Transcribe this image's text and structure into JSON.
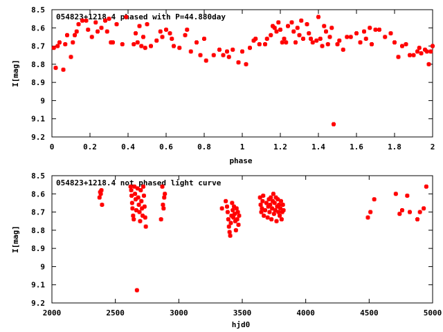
{
  "chart_data": [
    {
      "type": "scatter",
      "title": "054823+1218.4 phased with P=44.880day",
      "xlabel": "phase",
      "ylabel": "I[mag]",
      "xlim": [
        0,
        2
      ],
      "ylim": [
        8.5,
        9.2
      ],
      "y_inverted": true,
      "grid": false,
      "marker_color": "#ff0000",
      "xticks": [
        0,
        0.2,
        0.4,
        0.6,
        0.8,
        1,
        1.2,
        1.4,
        1.6,
        1.8,
        2
      ],
      "xtick_labels": [
        "0",
        "0.2",
        "0.4",
        "0.6",
        "0.8",
        "1",
        "1.2",
        "1.4",
        "1.6",
        "1.8",
        "2"
      ],
      "yticks": [
        8.5,
        8.6,
        8.7,
        8.8,
        8.9,
        9,
        9.1,
        9.2
      ],
      "ytick_labels": [
        "8.5",
        "8.6",
        "8.7",
        "8.8",
        "8.9",
        "9",
        "9.1",
        "9.2"
      ],
      "points": [
        [
          0.01,
          8.71
        ],
        [
          0.02,
          8.82
        ],
        [
          0.03,
          8.7
        ],
        [
          0.04,
          8.68
        ],
        [
          0.06,
          8.83
        ],
        [
          0.07,
          8.69
        ],
        [
          0.08,
          8.64
        ],
        [
          0.1,
          8.76
        ],
        [
          0.11,
          8.68
        ],
        [
          0.12,
          8.64
        ],
        [
          0.13,
          8.62
        ],
        [
          0.14,
          8.58
        ],
        [
          0.16,
          8.56
        ],
        [
          0.18,
          8.56
        ],
        [
          0.19,
          8.61
        ],
        [
          0.21,
          8.65
        ],
        [
          0.23,
          8.57
        ],
        [
          0.24,
          8.62
        ],
        [
          0.26,
          8.6
        ],
        [
          0.28,
          8.56
        ],
        [
          0.29,
          8.62
        ],
        [
          0.3,
          8.55
        ],
        [
          0.31,
          8.68
        ],
        [
          0.32,
          8.68
        ],
        [
          0.34,
          8.58
        ],
        [
          0.37,
          8.69
        ],
        [
          0.39,
          8.54
        ],
        [
          0.43,
          8.69
        ],
        [
          0.44,
          8.63
        ],
        [
          0.45,
          8.68
        ],
        [
          0.46,
          8.59
        ],
        [
          0.47,
          8.7
        ],
        [
          0.48,
          8.65
        ],
        [
          0.49,
          8.71
        ],
        [
          0.5,
          8.58
        ],
        [
          0.52,
          8.7
        ],
        [
          0.55,
          8.67
        ],
        [
          0.57,
          8.62
        ],
        [
          0.58,
          8.65
        ],
        [
          0.6,
          8.61
        ],
        [
          0.62,
          8.63
        ],
        [
          0.63,
          8.66
        ],
        [
          0.64,
          8.7
        ],
        [
          0.67,
          8.71
        ],
        [
          0.7,
          8.64
        ],
        [
          0.71,
          8.61
        ],
        [
          0.73,
          8.73
        ],
        [
          0.76,
          8.68
        ],
        [
          0.78,
          8.75
        ],
        [
          0.8,
          8.66
        ],
        [
          0.81,
          8.78
        ],
        [
          0.85,
          8.75
        ],
        [
          0.88,
          8.72
        ],
        [
          0.9,
          8.75
        ],
        [
          0.92,
          8.73
        ],
        [
          0.93,
          8.76
        ],
        [
          0.95,
          8.72
        ],
        [
          0.98,
          8.79
        ],
        [
          1.0,
          8.73
        ],
        [
          1.02,
          8.8
        ],
        [
          1.04,
          8.71
        ],
        [
          1.06,
          8.67
        ],
        [
          1.07,
          8.66
        ],
        [
          1.09,
          8.69
        ],
        [
          1.12,
          8.69
        ],
        [
          1.13,
          8.66
        ],
        [
          1.15,
          8.64
        ],
        [
          1.16,
          8.59
        ],
        [
          1.17,
          8.6
        ],
        [
          1.18,
          8.62
        ],
        [
          1.19,
          8.57
        ],
        [
          1.2,
          8.61
        ],
        [
          1.21,
          8.68
        ],
        [
          1.22,
          8.66
        ],
        [
          1.23,
          8.68
        ],
        [
          1.24,
          8.59
        ],
        [
          1.26,
          8.57
        ],
        [
          1.27,
          8.62
        ],
        [
          1.28,
          8.68
        ],
        [
          1.29,
          8.6
        ],
        [
          1.3,
          8.64
        ],
        [
          1.31,
          8.56
        ],
        [
          1.32,
          8.66
        ],
        [
          1.34,
          8.58
        ],
        [
          1.35,
          8.63
        ],
        [
          1.36,
          8.66
        ],
        [
          1.37,
          8.68
        ],
        [
          1.39,
          8.67
        ],
        [
          1.4,
          8.54
        ],
        [
          1.41,
          8.66
        ],
        [
          1.42,
          8.7
        ],
        [
          1.43,
          8.59
        ],
        [
          1.44,
          8.62
        ],
        [
          1.45,
          8.69
        ],
        [
          1.46,
          8.65
        ],
        [
          1.47,
          8.6
        ],
        [
          1.48,
          9.13
        ],
        [
          1.5,
          8.69
        ],
        [
          1.51,
          8.67
        ],
        [
          1.53,
          8.72
        ],
        [
          1.55,
          8.65
        ],
        [
          1.57,
          8.65
        ],
        [
          1.6,
          8.63
        ],
        [
          1.62,
          8.68
        ],
        [
          1.64,
          8.62
        ],
        [
          1.65,
          8.66
        ],
        [
          1.67,
          8.6
        ],
        [
          1.68,
          8.69
        ],
        [
          1.7,
          8.61
        ],
        [
          1.72,
          8.61
        ],
        [
          1.75,
          8.65
        ],
        [
          1.78,
          8.63
        ],
        [
          1.8,
          8.68
        ],
        [
          1.82,
          8.76
        ],
        [
          1.84,
          8.7
        ],
        [
          1.86,
          8.69
        ],
        [
          1.88,
          8.75
        ],
        [
          1.9,
          8.75
        ],
        [
          1.92,
          8.73
        ],
        [
          1.93,
          8.71
        ],
        [
          1.94,
          8.74
        ],
        [
          1.96,
          8.72
        ],
        [
          1.97,
          8.73
        ],
        [
          1.98,
          8.8
        ],
        [
          1.99,
          8.73
        ],
        [
          2.0,
          8.7
        ]
      ]
    },
    {
      "type": "scatter",
      "title": "054823+1218.4 not phased light curve",
      "xlabel": "hjd0",
      "ylabel": "I[mag]",
      "xlim": [
        2000,
        5000
      ],
      "ylim": [
        8.5,
        9.2
      ],
      "y_inverted": true,
      "grid": false,
      "marker_color": "#ff0000",
      "xticks": [
        2000,
        2500,
        3000,
        3500,
        4000,
        4500,
        5000
      ],
      "xtick_labels": [
        "2000",
        "2500",
        "3000",
        "3500",
        "4000",
        "4500",
        "5000"
      ],
      "yticks": [
        8.5,
        8.6,
        8.7,
        8.8,
        8.9,
        9,
        9.1,
        9.2
      ],
      "ytick_labels": [
        "8.5",
        "8.6",
        "8.7",
        "8.8",
        "8.9",
        "9",
        "9.1",
        "9.2"
      ],
      "points": [
        [
          2375,
          8.62
        ],
        [
          2380,
          8.59
        ],
        [
          2385,
          8.6
        ],
        [
          2390,
          8.58
        ],
        [
          2395,
          8.66
        ],
        [
          2620,
          8.56
        ],
        [
          2625,
          8.58
        ],
        [
          2628,
          8.61
        ],
        [
          2632,
          8.65
        ],
        [
          2635,
          8.68
        ],
        [
          2640,
          8.72
        ],
        [
          2645,
          8.74
        ],
        [
          2650,
          8.56
        ],
        [
          2655,
          8.6
        ],
        [
          2660,
          8.63
        ],
        [
          2665,
          8.69
        ],
        [
          2670,
          9.13
        ],
        [
          2675,
          8.57
        ],
        [
          2680,
          8.62
        ],
        [
          2685,
          8.66
        ],
        [
          2690,
          8.7
        ],
        [
          2695,
          8.75
        ],
        [
          2700,
          8.58
        ],
        [
          2705,
          8.64
        ],
        [
          2710,
          8.68
        ],
        [
          2715,
          8.72
        ],
        [
          2720,
          8.56
        ],
        [
          2725,
          8.61
        ],
        [
          2730,
          8.67
        ],
        [
          2735,
          8.73
        ],
        [
          2740,
          8.78
        ],
        [
          2860,
          8.74
        ],
        [
          2870,
          8.56
        ],
        [
          2875,
          8.66
        ],
        [
          2880,
          8.68
        ],
        [
          2885,
          8.62
        ],
        [
          2890,
          8.6
        ],
        [
          3340,
          8.68
        ],
        [
          3370,
          8.64
        ],
        [
          3380,
          8.67
        ],
        [
          3385,
          8.7
        ],
        [
          3390,
          8.74
        ],
        [
          3395,
          8.78
        ],
        [
          3400,
          8.81
        ],
        [
          3405,
          8.83
        ],
        [
          3410,
          8.76
        ],
        [
          3415,
          8.72
        ],
        [
          3420,
          8.65
        ],
        [
          3425,
          8.69
        ],
        [
          3430,
          8.73
        ],
        [
          3435,
          8.67
        ],
        [
          3440,
          8.71
        ],
        [
          3445,
          8.75
        ],
        [
          3450,
          8.8
        ],
        [
          3455,
          8.68
        ],
        [
          3460,
          8.74
        ],
        [
          3465,
          8.7
        ],
        [
          3470,
          8.77
        ],
        [
          3475,
          8.72
        ],
        [
          3640,
          8.62
        ],
        [
          3645,
          8.66
        ],
        [
          3650,
          8.7
        ],
        [
          3655,
          8.68
        ],
        [
          3660,
          8.64
        ],
        [
          3665,
          8.61
        ],
        [
          3670,
          8.72
        ],
        [
          3680,
          8.69
        ],
        [
          3690,
          8.65
        ],
        [
          3700,
          8.73
        ],
        [
          3705,
          8.67
        ],
        [
          3710,
          8.63
        ],
        [
          3715,
          8.7
        ],
        [
          3720,
          8.66
        ],
        [
          3725,
          8.62
        ],
        [
          3730,
          8.74
        ],
        [
          3735,
          8.68
        ],
        [
          3740,
          8.64
        ],
        [
          3745,
          8.6
        ],
        [
          3750,
          8.71
        ],
        [
          3755,
          8.65
        ],
        [
          3760,
          8.69
        ],
        [
          3765,
          8.62
        ],
        [
          3770,
          8.75
        ],
        [
          3775,
          8.67
        ],
        [
          3780,
          8.63
        ],
        [
          3785,
          8.7
        ],
        [
          3790,
          8.66
        ],
        [
          3795,
          8.72
        ],
        [
          3800,
          8.68
        ],
        [
          3805,
          8.64
        ],
        [
          3810,
          8.74
        ],
        [
          3815,
          8.7
        ],
        [
          3820,
          8.66
        ],
        [
          3825,
          8.69
        ],
        [
          4490,
          8.73
        ],
        [
          4510,
          8.7
        ],
        [
          4540,
          8.63
        ],
        [
          4710,
          8.6
        ],
        [
          4740,
          8.71
        ],
        [
          4760,
          8.69
        ],
        [
          4800,
          8.61
        ],
        [
          4820,
          8.7
        ],
        [
          4880,
          8.74
        ],
        [
          4900,
          8.7
        ],
        [
          4930,
          8.68
        ],
        [
          4950,
          8.56
        ]
      ]
    }
  ]
}
